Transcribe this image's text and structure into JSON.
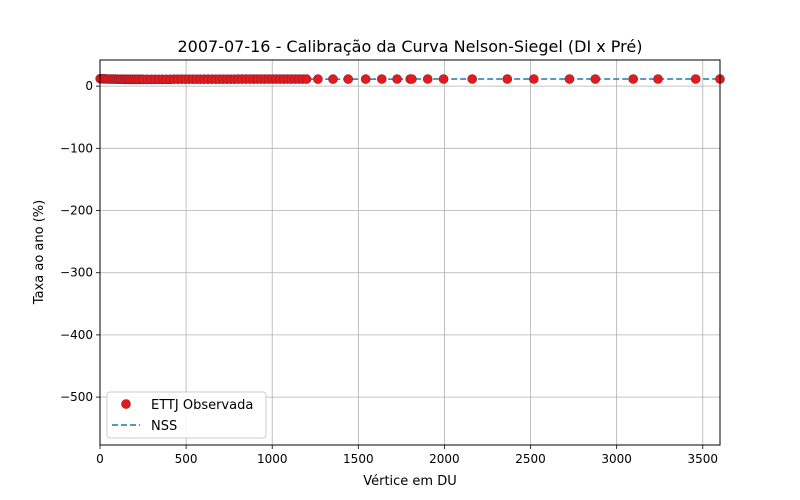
{
  "chart_data": {
    "type": "scatter",
    "title": "2007-07-16 - Calibração da Curva Nelson-Siegel (DI x Pré)",
    "xlabel": "Vértice em DU",
    "ylabel": "Taxa ao ano (%)",
    "xlim": [
      0,
      3600
    ],
    "ylim": [
      -577,
      42
    ],
    "xticks": [
      0,
      500,
      1000,
      1500,
      2000,
      2500,
      3000,
      3500
    ],
    "xtick_labels": [
      "0",
      "500",
      "1000",
      "1500",
      "2000",
      "2500",
      "3000",
      "3500"
    ],
    "yticks": [
      0,
      -100,
      -200,
      -300,
      -400,
      -500
    ],
    "ytick_labels": [
      "0",
      "−100",
      "−200",
      "−300",
      "−400",
      "−500"
    ],
    "grid": true,
    "legend_position": "lower-left",
    "series": [
      {
        "name": "ETTJ Observada",
        "kind": "scatter",
        "color": "#e41a1c",
        "marker_edge": "#8b2030",
        "x": [
          1,
          12,
          23,
          34,
          45,
          56,
          66,
          77,
          88,
          99,
          110,
          121,
          132,
          143,
          154,
          165,
          176,
          187,
          198,
          209,
          220,
          231,
          242,
          253,
          275,
          297,
          319,
          341,
          363,
          385,
          407,
          429,
          451,
          473,
          495,
          517,
          539,
          561,
          583,
          605,
          627,
          649,
          671,
          693,
          715,
          737,
          759,
          781,
          803,
          825,
          847,
          869,
          891,
          913,
          935,
          957,
          979,
          1001,
          1023,
          1045,
          1067,
          1089,
          1111,
          1133,
          1155,
          1177,
          1199,
          1265,
          1353,
          1441,
          1543,
          1636,
          1725,
          1801,
          1811,
          1903,
          1995,
          2161,
          2365,
          2519,
          2726,
          2876,
          3096,
          3240,
          3459,
          3600
        ],
        "y": [
          11.9,
          11.8,
          11.7,
          11.6,
          11.5,
          11.4,
          11.35,
          11.3,
          11.25,
          11.2,
          11.15,
          11.1,
          11.08,
          11.05,
          11.03,
          11.0,
          10.98,
          10.97,
          10.96,
          10.95,
          10.95,
          10.95,
          10.96,
          10.97,
          10.98,
          11.0,
          11.01,
          11.02,
          11.03,
          11.04,
          11.05,
          11.06,
          11.07,
          11.08,
          11.09,
          11.1,
          11.11,
          11.12,
          11.13,
          11.14,
          11.15,
          11.16,
          11.17,
          11.18,
          11.19,
          11.2,
          11.2,
          11.21,
          11.22,
          11.22,
          11.23,
          11.23,
          11.24,
          11.24,
          11.25,
          11.25,
          11.26,
          11.26,
          11.27,
          11.27,
          11.28,
          11.28,
          11.29,
          11.29,
          11.3,
          11.3,
          11.3,
          11.32,
          11.33,
          11.35,
          11.36,
          11.38,
          11.39,
          11.4,
          11.4,
          11.41,
          11.42,
          11.44,
          11.46,
          11.47,
          11.48,
          11.49,
          11.5,
          11.51,
          11.52,
          11.52
        ]
      },
      {
        "name": "NSS",
        "kind": "line",
        "style": "dashed",
        "color": "#1f77b4",
        "x": [
          1,
          100,
          200,
          300,
          500,
          800,
          1200,
          1600,
          2000,
          2500,
          3000,
          3600
        ],
        "y": [
          11.9,
          11.2,
          10.95,
          11.0,
          11.09,
          11.2,
          11.3,
          11.37,
          11.42,
          11.47,
          11.5,
          11.52
        ]
      }
    ]
  }
}
